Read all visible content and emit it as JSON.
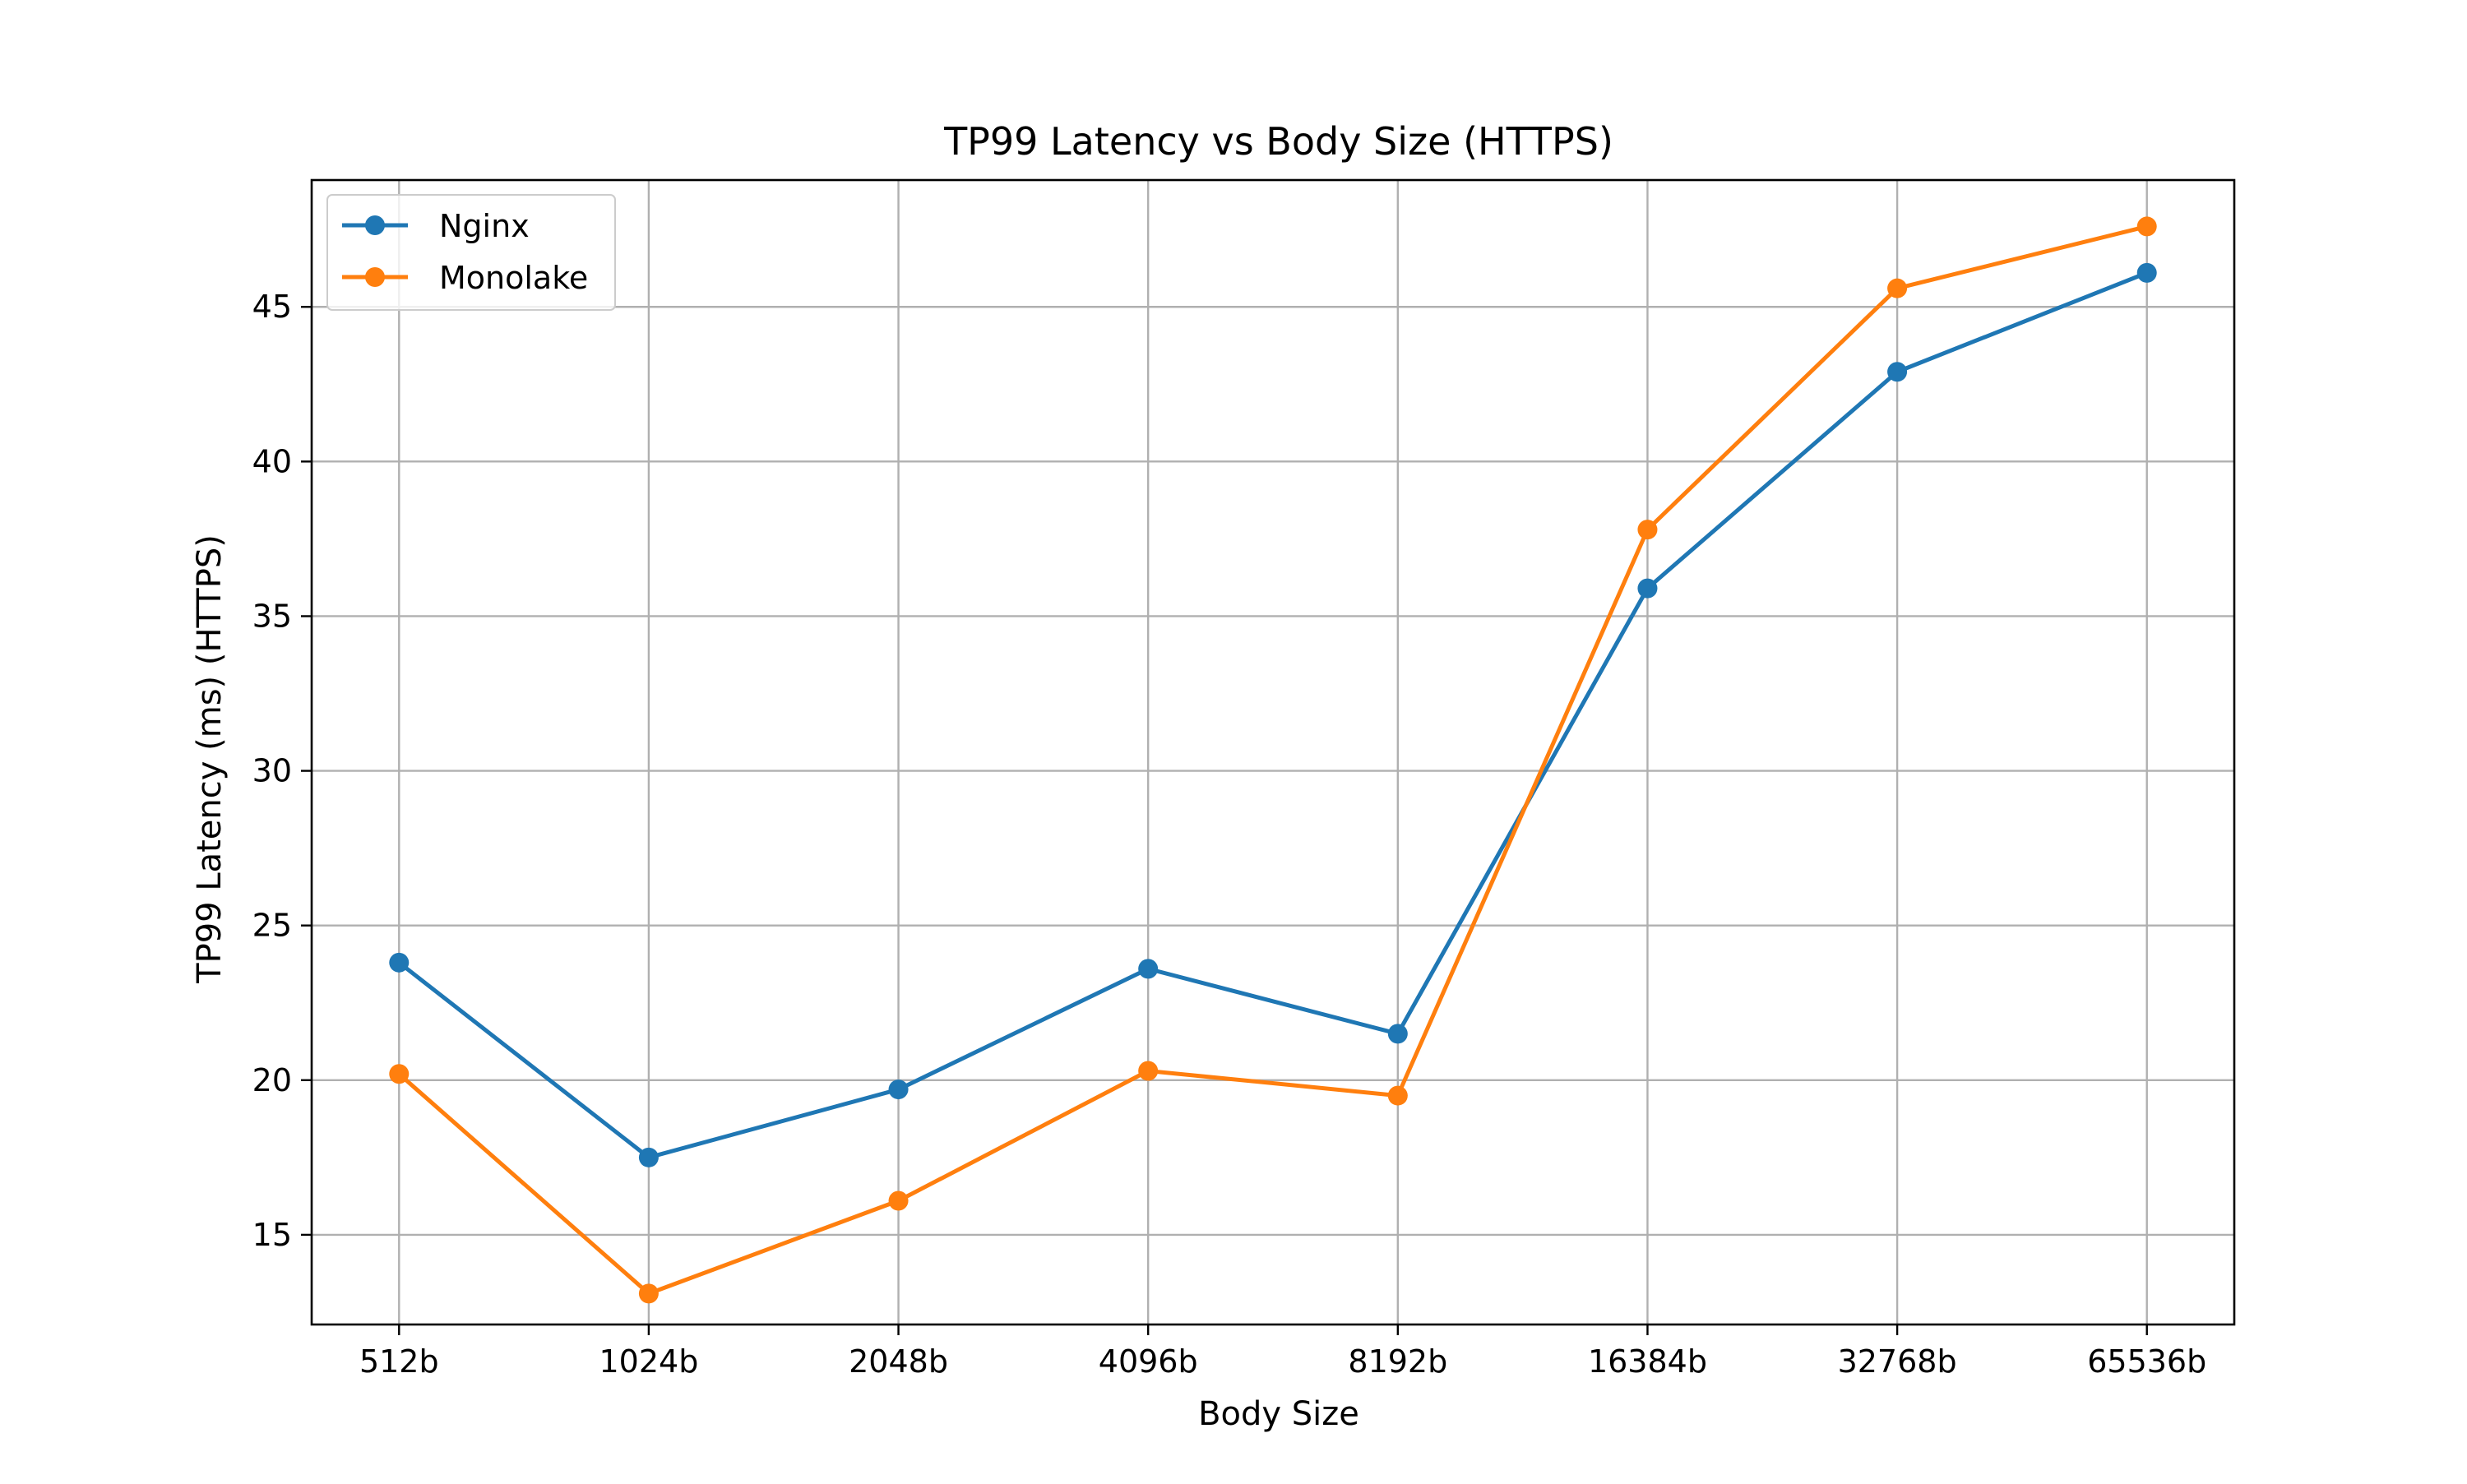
{
  "chart_data": {
    "type": "line",
    "title": "TP99 Latency vs Body Size (HTTPS)",
    "xlabel": "Body Size",
    "ylabel": "TP99 Latency (ms) (HTTPS)",
    "categories": [
      "512b",
      "1024b",
      "2048b",
      "4096b",
      "8192b",
      "16384b",
      "32768b",
      "65536b"
    ],
    "ylim": [
      12.1,
      49.1
    ],
    "yticks": [
      15,
      20,
      25,
      30,
      35,
      40,
      45
    ],
    "grid": true,
    "legend_position": "upper-left",
    "series": [
      {
        "name": "Nginx",
        "color": "#1f77b4",
        "marker": "circle",
        "values": [
          23.8,
          17.5,
          19.7,
          23.6,
          21.5,
          35.9,
          42.9,
          46.1
        ]
      },
      {
        "name": "Monolake",
        "color": "#ff7f0e",
        "marker": "circle",
        "values": [
          20.2,
          13.1,
          16.1,
          20.3,
          19.5,
          37.8,
          45.6,
          47.6
        ]
      }
    ]
  }
}
